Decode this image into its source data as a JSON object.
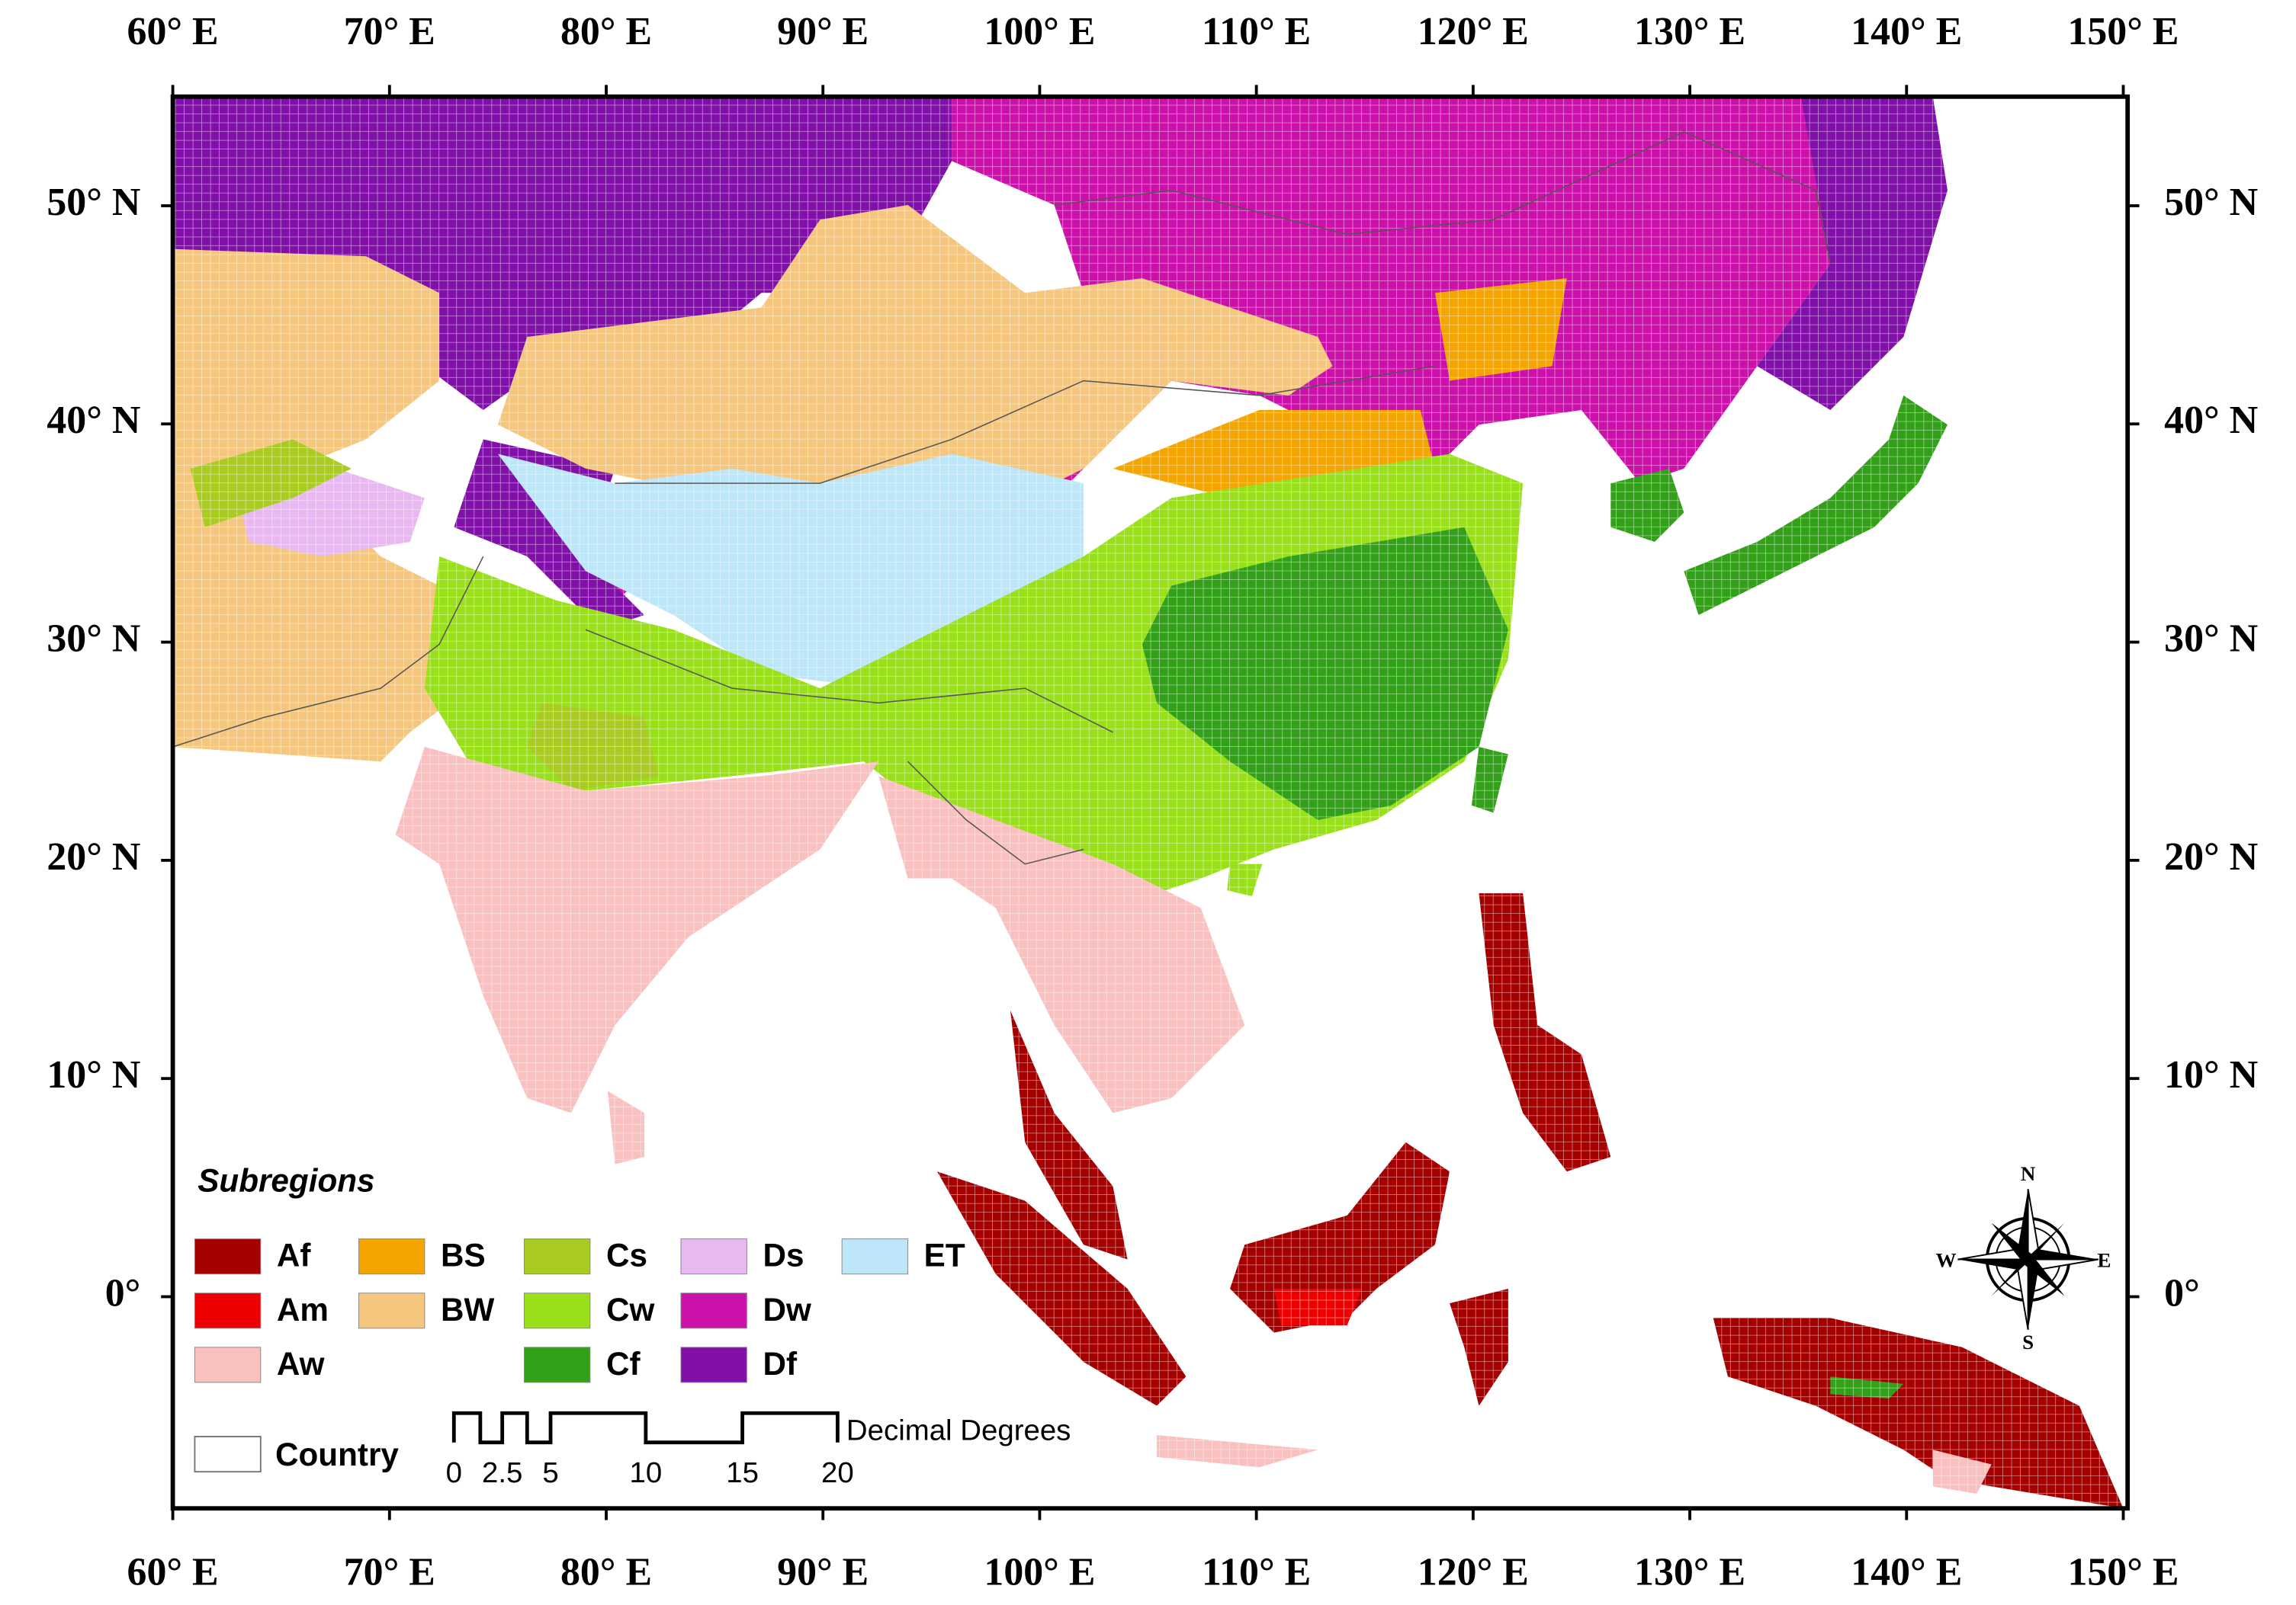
{
  "map": {
    "xlim": [
      60,
      150.2
    ],
    "ylim": [
      -9.7,
      55
    ],
    "x_ticks": [
      {
        "value": 60,
        "label": "60° E"
      },
      {
        "value": 70,
        "label": "70° E"
      },
      {
        "value": 80,
        "label": "80° E"
      },
      {
        "value": 90,
        "label": "90° E"
      },
      {
        "value": 100,
        "label": "100° E"
      },
      {
        "value": 110,
        "label": "110° E"
      },
      {
        "value": 120,
        "label": "120° E"
      },
      {
        "value": 130,
        "label": "130° E"
      },
      {
        "value": 140,
        "label": "140° E"
      },
      {
        "value": 150,
        "label": "150° E"
      }
    ],
    "y_ticks": [
      {
        "value": 50,
        "label": "50° N"
      },
      {
        "value": 40,
        "label": "40° N"
      },
      {
        "value": 30,
        "label": "30° N"
      },
      {
        "value": 20,
        "label": "20° N"
      },
      {
        "value": 10,
        "label": "10° N"
      },
      {
        "value": 0,
        "label": "0°"
      }
    ],
    "legend": {
      "title": "Subregions",
      "items": [
        {
          "label": "Af",
          "color": "#a50000"
        },
        {
          "label": "Am",
          "color": "#ee0000"
        },
        {
          "label": "Aw",
          "color": "#f9c0c0"
        },
        {
          "label": "BS",
          "color": "#f5a500"
        },
        {
          "label": "BW",
          "color": "#f5c77e"
        },
        {
          "label": "Cs",
          "color": "#aacc22"
        },
        {
          "label": "Cw",
          "color": "#99e01a"
        },
        {
          "label": "Cf",
          "color": "#33a01a"
        },
        {
          "label": "Ds",
          "color": "#e8b8f0"
        },
        {
          "label": "Dw",
          "color": "#cc11aa"
        },
        {
          "label": "Df",
          "color": "#8010a8"
        },
        {
          "label": "ET",
          "color": "#bde6f8"
        }
      ],
      "country": "Country"
    },
    "scale_bar": {
      "labels": [
        "0",
        "2.5",
        "5",
        "10",
        "15",
        "20"
      ],
      "unit": "Decimal Degrees"
    },
    "compass": {
      "n": "N",
      "s": "S",
      "e": "E",
      "w": "W"
    }
  }
}
